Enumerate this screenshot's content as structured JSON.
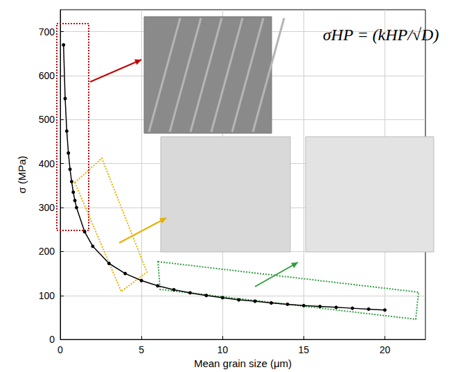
{
  "chart_data": {
    "type": "line",
    "x_label": "Mean grain size (μm)",
    "y_label": "σ (MPa)",
    "annotations": [
      "σHP = (kHP/√D)"
    ],
    "x": [
      0.2,
      0.3,
      0.4,
      0.5,
      0.6,
      0.7,
      0.8,
      0.9,
      1.0,
      1.5,
      2,
      3,
      4,
      5,
      6,
      7,
      8,
      9,
      10,
      11,
      12,
      13,
      14,
      15,
      16,
      17,
      18,
      19,
      20
    ],
    "values": [
      670,
      548,
      474,
      424,
      387,
      359,
      335,
      316,
      300,
      245,
      212,
      173,
      150,
      134,
      122,
      113,
      106,
      100,
      95,
      90,
      87,
      83,
      80,
      77,
      75,
      73,
      71,
      69,
      67
    ],
    "color": "#000000",
    "marker": "circle",
    "xlim": [
      0,
      22.5
    ],
    "xticks": [
      0,
      5,
      10,
      15,
      20
    ],
    "ylim": [
      0,
      750
    ],
    "yticks": [
      0,
      100,
      200,
      300,
      400,
      500,
      600,
      700
    ],
    "grid": true
  }
}
